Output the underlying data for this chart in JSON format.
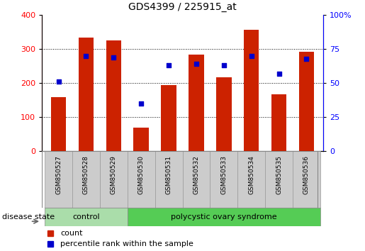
{
  "title": "GDS4399 / 225915_at",
  "samples": [
    "GSM850527",
    "GSM850528",
    "GSM850529",
    "GSM850530",
    "GSM850531",
    "GSM850532",
    "GSM850533",
    "GSM850534",
    "GSM850535",
    "GSM850536"
  ],
  "counts": [
    160,
    333,
    325,
    70,
    195,
    283,
    218,
    357,
    168,
    292
  ],
  "percentiles": [
    51,
    70,
    69,
    35,
    63,
    64,
    63,
    70,
    57,
    68
  ],
  "n_control": 3,
  "bar_color": "#cc2200",
  "dot_color": "#0000cc",
  "ylim_left": [
    0,
    400
  ],
  "ylim_right": [
    0,
    100
  ],
  "left_ticks": [
    0,
    100,
    200,
    300,
    400
  ],
  "right_ticks": [
    0,
    25,
    50,
    75,
    100
  ],
  "bg_color": "#ffffff",
  "plot_bg": "#ffffff",
  "label_box_bg": "#cccccc",
  "label_box_edge": "#999999",
  "control_bg": "#aaddaa",
  "pcos_bg": "#55cc55",
  "legend_count_label": "count",
  "legend_pct_label": "percentile rank within the sample",
  "disease_state_label": "disease state",
  "control_label": "control",
  "pcos_label": "polycystic ovary syndrome",
  "title_fontsize": 10,
  "tick_fontsize": 8,
  "label_fontsize": 7,
  "legend_fontsize": 8,
  "disease_fontsize": 8,
  "sample_fontsize": 6.5
}
